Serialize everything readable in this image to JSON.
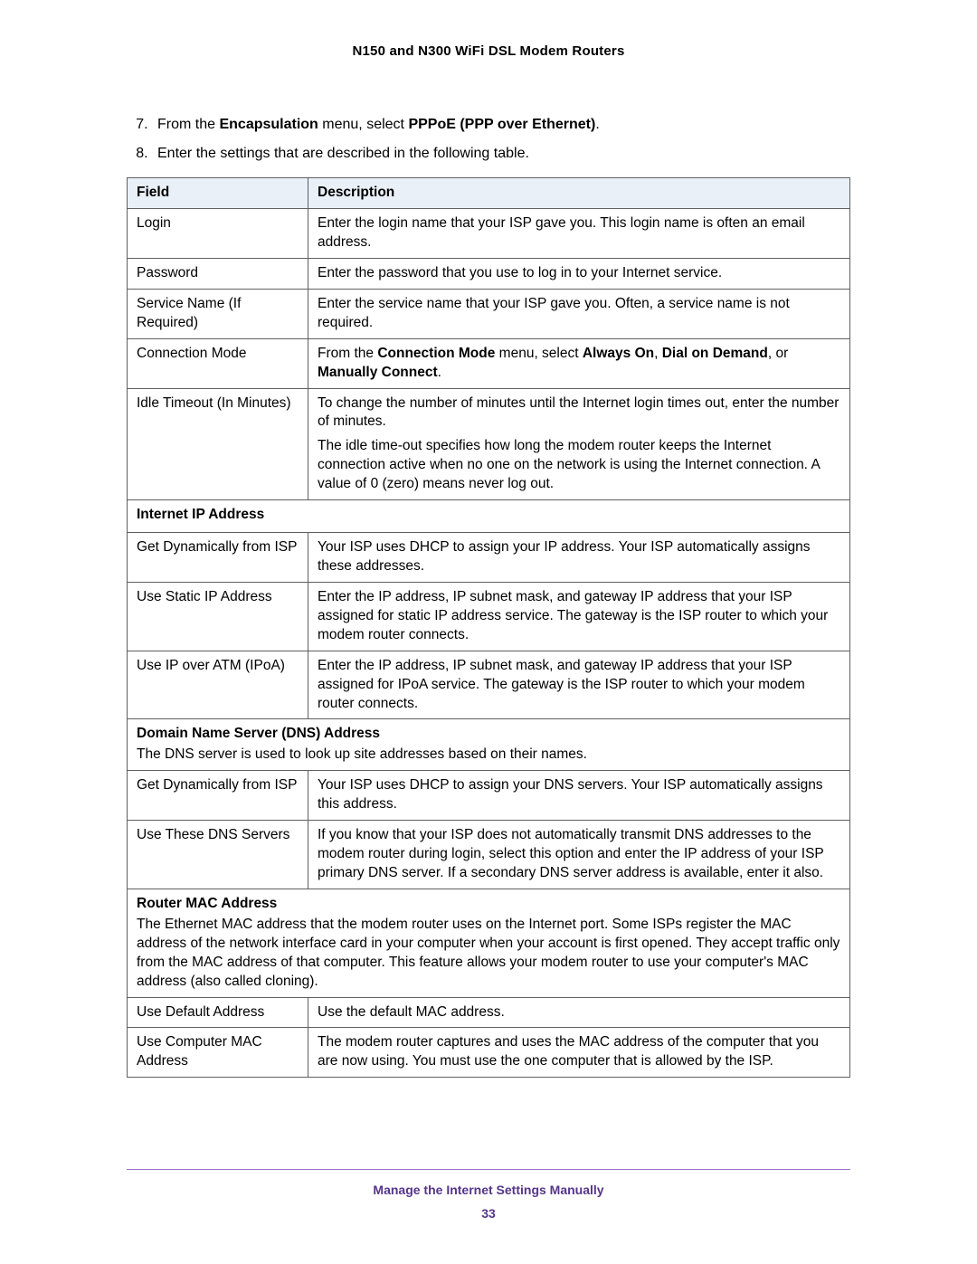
{
  "header": {
    "title": "N150 and N300 WiFi DSL Modem Routers"
  },
  "steps": {
    "start": 7,
    "s7": {
      "pre": "From the ",
      "b1": "Encapsulation",
      "mid": " menu, select ",
      "b2": "PPPoE (PPP over Ethernet)",
      "post": "."
    },
    "s8": "Enter the settings that are described in the following table."
  },
  "table": {
    "headers": {
      "field": "Field",
      "desc": "Description"
    },
    "rows": {
      "login": {
        "field": "Login",
        "desc": "Enter the login name that your ISP gave you. This login name is often an email address."
      },
      "password": {
        "field": "Password",
        "desc": "Enter the password that you use to log in to your Internet service."
      },
      "service": {
        "field": "Service Name (If Required)",
        "desc": "Enter the service name that your ISP gave you. Often, a service name is not required."
      },
      "conn": {
        "field": "Connection Mode",
        "pre": "From the ",
        "b1": "Connection Mode",
        "mid1": " menu, select ",
        "b2": "Always On",
        "mid2": ", ",
        "b3": "Dial on Demand",
        "mid3": ", or ",
        "b4": "Manually Connect",
        "post": "."
      },
      "idle": {
        "field": "Idle Timeout (In Minutes)",
        "p1": "To change the number of minutes until the Internet login times out, enter the number of minutes.",
        "p2": "The idle time-out specifies how long the modem router keeps the Internet connection active when no one on the network is using the Internet connection. A value of 0 (zero) means never log out."
      },
      "sec_ip": {
        "title": "Internet IP Address"
      },
      "getip": {
        "field": "Get Dynamically from ISP",
        "desc": "Your ISP uses DHCP to assign your IP address. Your ISP automatically assigns these addresses."
      },
      "staticip": {
        "field": "Use Static IP Address",
        "desc": "Enter the IP address, IP subnet mask, and gateway IP address that your ISP assigned for static IP address service. The gateway is the ISP router to which your modem router connects."
      },
      "ipoa": {
        "field": "Use IP over ATM (IPoA)",
        "desc": "Enter the IP address, IP subnet mask, and gateway IP address that your ISP assigned for IPoA service. The gateway is the ISP router to which your modem router connects."
      },
      "sec_dns": {
        "title": "Domain Name Server (DNS) Address",
        "desc": "The DNS server is used to look up site addresses based on their names."
      },
      "getdns": {
        "field": "Get Dynamically from ISP",
        "desc": "Your ISP uses DHCP to assign your DNS servers. Your ISP automatically assigns this address."
      },
      "usedns": {
        "field": "Use These DNS Servers",
        "desc": "If you know that your ISP does not automatically transmit DNS addresses to the modem router during login, select this option and enter the IP address of your ISP primary DNS server. If a secondary DNS server address is available, enter it also."
      },
      "sec_mac": {
        "title": "Router MAC Address",
        "desc": "The Ethernet MAC address that the modem router uses on the Internet port. Some ISPs register the MAC address of the network interface card in your computer when your account is first opened. They accept traffic only from the MAC address of that computer. This feature allows your modem router to use your computer's MAC address (also called cloning)."
      },
      "defmac": {
        "field": "Use Default Address",
        "desc": "Use the default MAC address."
      },
      "compmac": {
        "field": "Use Computer MAC Address",
        "desc": "The modem router captures and uses the MAC address of the computer that you are now using. You must use the one computer that is allowed by the ISP."
      }
    }
  },
  "footer": {
    "title": "Manage the Internet Settings Manually",
    "page": "33"
  },
  "colors": {
    "header_bg": "#eaf0f8",
    "border": "#606060",
    "purple": "#55358a",
    "line": "#9a70c8"
  }
}
